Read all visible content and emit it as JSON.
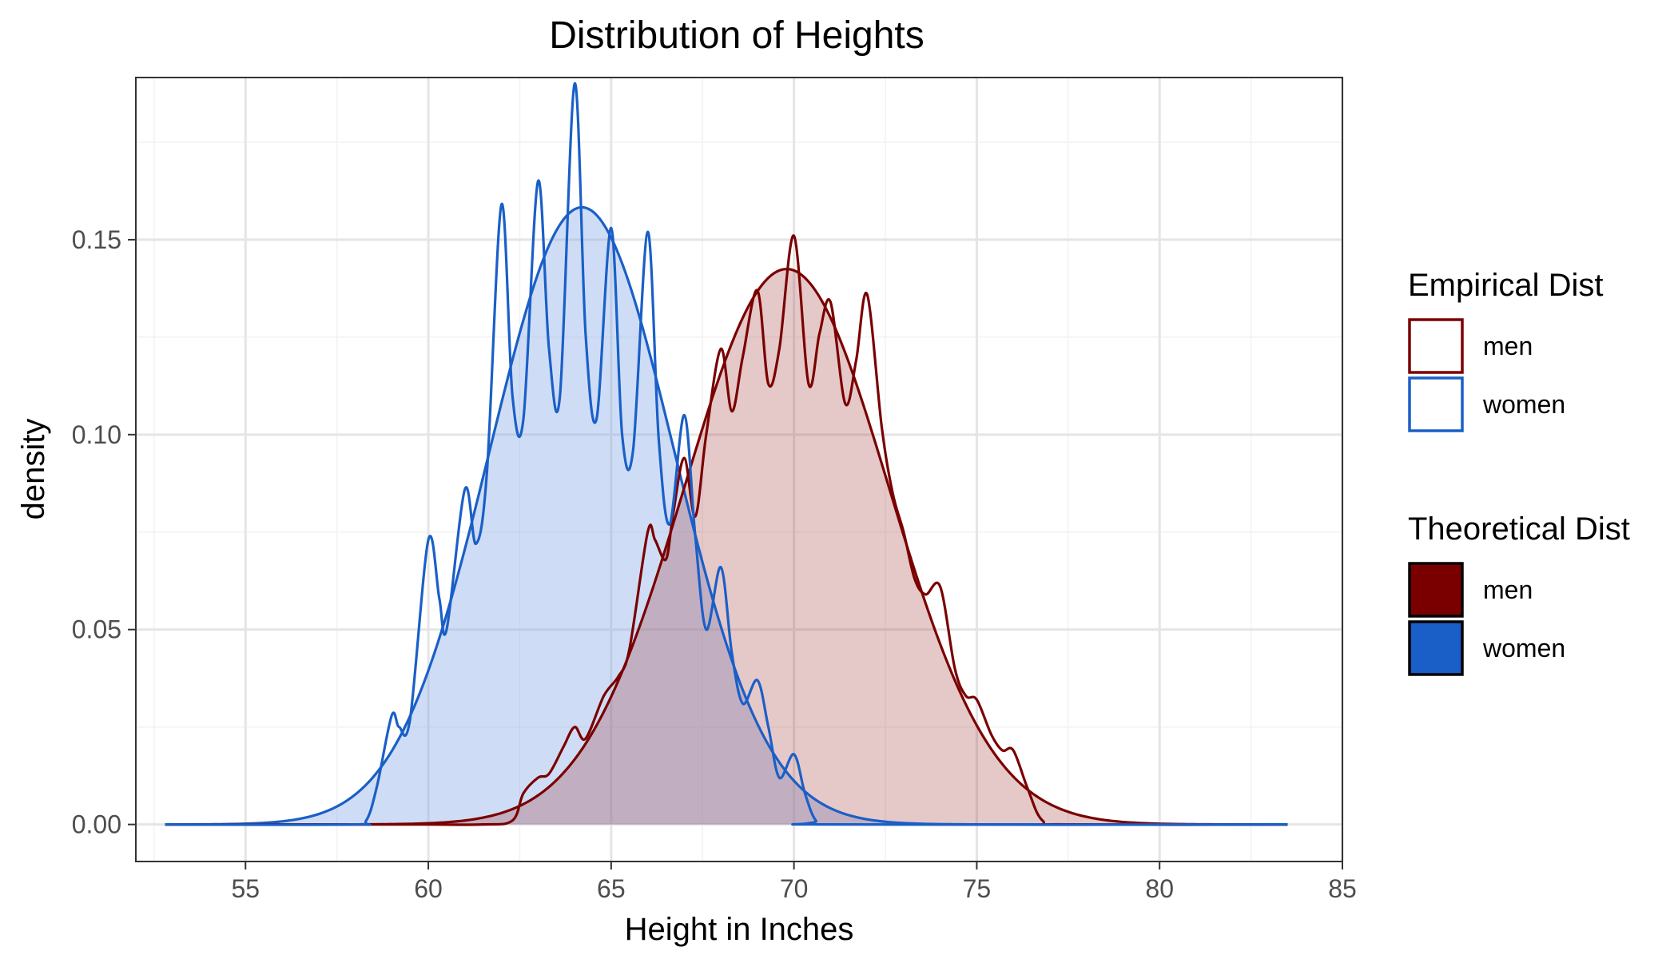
{
  "chart_data": {
    "type": "area",
    "title": "Distribution of Heights",
    "xlabel": "Height in Inches",
    "ylabel": "density",
    "xlim": [
      52.0,
      85.0
    ],
    "ylim": [
      -0.0095,
      0.1916
    ],
    "x_ticks": [
      55,
      60,
      65,
      70,
      75,
      80,
      85
    ],
    "x_tick_labels": [
      "55",
      "60",
      "65",
      "70",
      "75",
      "80",
      "85"
    ],
    "y_ticks": [
      0.0,
      0.05,
      0.1,
      0.15
    ],
    "y_tick_labels": [
      "0.00",
      "0.05",
      "0.10",
      "0.15"
    ],
    "grid": true,
    "legend_position": "right",
    "colors": {
      "men_line": "#7a0000",
      "men_fill": "#a33a3a",
      "women_line": "#1a5fc7",
      "women_fill": "#7ea6e6",
      "panel_border": "#333333",
      "grid_major": "#e5e5e5",
      "grid_minor": "#f2f2f2"
    },
    "empirical_series": [
      {
        "name": "men",
        "x": [
          52.8,
          58.0,
          60.0,
          61.5,
          62.3,
          62.6,
          63.0,
          63.3,
          63.7,
          64.0,
          64.3,
          64.8,
          65.2,
          65.5,
          66.0,
          66.2,
          66.5,
          66.7,
          67.0,
          67.3,
          67.6,
          68.0,
          68.3,
          68.6,
          69.0,
          69.3,
          69.6,
          70.0,
          70.4,
          70.7,
          71.0,
          71.4,
          71.7,
          72.0,
          72.4,
          72.7,
          73.0,
          73.3,
          73.6,
          74.0,
          74.4,
          74.7,
          75.0,
          75.4,
          75.7,
          76.0,
          76.4,
          76.8,
          77.5,
          83.5
        ],
        "values": [
          0.0,
          0.0,
          0.0,
          0.0,
          0.001,
          0.008,
          0.012,
          0.013,
          0.02,
          0.025,
          0.022,
          0.033,
          0.038,
          0.045,
          0.075,
          0.073,
          0.068,
          0.08,
          0.094,
          0.079,
          0.1,
          0.122,
          0.106,
          0.12,
          0.137,
          0.113,
          0.122,
          0.151,
          0.113,
          0.126,
          0.134,
          0.108,
          0.119,
          0.136,
          0.102,
          0.085,
          0.075,
          0.063,
          0.059,
          0.061,
          0.04,
          0.033,
          0.032,
          0.023,
          0.019,
          0.019,
          0.009,
          0.001,
          0.0,
          0.0
        ]
      },
      {
        "name": "women",
        "x": [
          52.8,
          57.9,
          58.3,
          58.6,
          59.0,
          59.2,
          59.5,
          60.0,
          60.3,
          60.5,
          61.0,
          61.3,
          61.6,
          62.0,
          62.3,
          62.6,
          63.0,
          63.3,
          63.6,
          64.0,
          64.3,
          64.6,
          65.0,
          65.3,
          65.6,
          66.0,
          66.3,
          66.6,
          67.0,
          67.3,
          67.6,
          68.0,
          68.3,
          68.6,
          69.0,
          69.3,
          69.6,
          70.0,
          70.3,
          70.6,
          71.0,
          83.5
        ],
        "values": [
          0.0,
          0.0,
          0.001,
          0.01,
          0.028,
          0.025,
          0.027,
          0.073,
          0.058,
          0.05,
          0.086,
          0.072,
          0.09,
          0.159,
          0.11,
          0.104,
          0.165,
          0.122,
          0.11,
          0.19,
          0.126,
          0.104,
          0.153,
          0.1,
          0.096,
          0.152,
          0.099,
          0.077,
          0.105,
          0.074,
          0.05,
          0.066,
          0.044,
          0.031,
          0.037,
          0.025,
          0.012,
          0.018,
          0.008,
          0.001,
          0.0,
          0.0
        ]
      }
    ],
    "theoretical_series": [
      {
        "name": "men",
        "mean": 69.8,
        "sd": 2.8,
        "x_range": [
          52.8,
          83.5
        ]
      },
      {
        "name": "women",
        "mean": 64.2,
        "sd": 2.52,
        "x_range": [
          52.8,
          83.5
        ]
      }
    ],
    "legends": [
      {
        "title": "Empirical Dist",
        "style": "outline",
        "items": [
          "men",
          "women"
        ]
      },
      {
        "title": "Theoretical Dist",
        "style": "filled",
        "items": [
          "men",
          "women"
        ]
      }
    ]
  }
}
